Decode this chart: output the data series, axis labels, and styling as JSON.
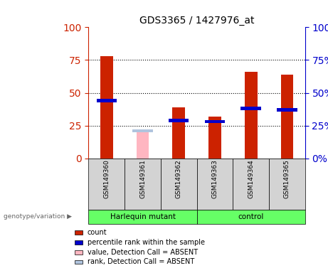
{
  "title": "GDS3365 / 1427976_at",
  "samples": [
    "GSM149360",
    "GSM149361",
    "GSM149362",
    "GSM149363",
    "GSM149364",
    "GSM149365"
  ],
  "count_values": [
    78,
    0,
    39,
    32,
    66,
    64
  ],
  "rank_values": [
    44,
    0,
    29,
    28,
    38,
    37
  ],
  "absent_value": [
    0,
    22,
    0,
    0,
    0,
    0
  ],
  "absent_rank": [
    0,
    21,
    0,
    0,
    0,
    0
  ],
  "groups": [
    {
      "name": "Harlequin mutant",
      "indices": [
        0,
        1,
        2
      ],
      "color": "#66FF66"
    },
    {
      "name": "control",
      "indices": [
        3,
        4,
        5
      ],
      "color": "#66FF66"
    }
  ],
  "bar_width": 0.35,
  "count_color": "#CC2200",
  "rank_color": "#0000CC",
  "absent_val_color": "#FFB6C1",
  "absent_rank_color": "#B0C4DE",
  "sample_box_color": "#D3D3D3",
  "ylim": [
    0,
    100
  ],
  "yticks": [
    0,
    25,
    50,
    75,
    100
  ],
  "left_axis_color": "#CC2200",
  "right_axis_color": "#0000CC",
  "legend_items": [
    {
      "color": "#CC2200",
      "label": "count"
    },
    {
      "color": "#0000CC",
      "label": "percentile rank within the sample"
    },
    {
      "color": "#FFB6C1",
      "label": "value, Detection Call = ABSENT"
    },
    {
      "color": "#B0C4DE",
      "label": "rank, Detection Call = ABSENT"
    }
  ]
}
